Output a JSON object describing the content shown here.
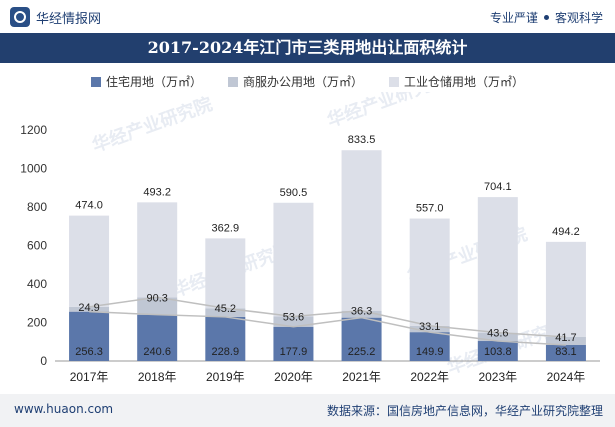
{
  "header": {
    "brand": "华经情报网",
    "tag_left": "专业严谨",
    "tag_right": "客观科学"
  },
  "chart_data": {
    "type": "bar",
    "stacked": true,
    "title": "2017-2024年江门市三类用地出让面积统计",
    "categories": [
      "2017年",
      "2018年",
      "2019年",
      "2020年",
      "2021年",
      "2022年",
      "2023年",
      "2024年"
    ],
    "series": [
      {
        "name": "住宅用地（万㎡）",
        "color": "#5b77aa",
        "values": [
          256.3,
          240.6,
          228.9,
          177.9,
          225.2,
          149.9,
          103.8,
          83.1
        ]
      },
      {
        "name": "商服办公用地（万㎡）",
        "color": "#c0c7d4",
        "values": [
          24.9,
          90.3,
          45.2,
          53.6,
          36.3,
          33.1,
          43.6,
          41.7
        ]
      },
      {
        "name": "工业仓储用地（万㎡）",
        "color": "#dcdfe8",
        "values": [
          474.0,
          493.2,
          362.9,
          590.5,
          833.5,
          557.0,
          704.1,
          494.2
        ]
      }
    ],
    "ylim": [
      0,
      1200
    ],
    "yticks": [
      0,
      200,
      400,
      600,
      800,
      1000,
      1200
    ],
    "grid": false,
    "legend_position": "top",
    "trend_line_color": "#bfbfbf",
    "watermark": "华经产业研究院"
  },
  "footer": {
    "website": "www.huaon.com",
    "source": "数据来源：国信房地产信息网，华经产业研究院整理"
  }
}
